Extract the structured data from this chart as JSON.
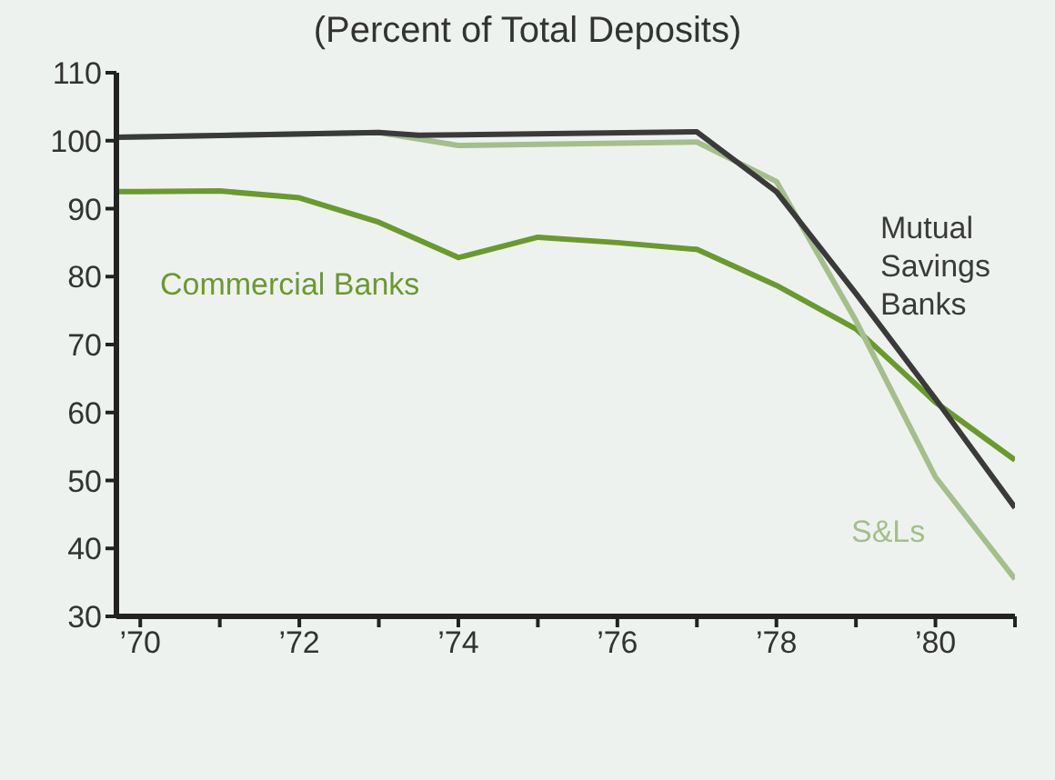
{
  "chart_data": {
    "type": "line",
    "title": "(Percent of Total Deposits)",
    "series": [
      {
        "name": "Commercial Banks",
        "color": "#6a9a2e",
        "x": [
          69.7,
          70,
          71,
          72,
          73,
          74,
          75,
          76,
          77,
          78,
          79,
          80,
          81
        ],
        "values": [
          92.5,
          92.5,
          92.6,
          91.6,
          88,
          82.8,
          85.8,
          85,
          84,
          78.7,
          72.3,
          61.5,
          53
        ]
      },
      {
        "name": "S&Ls",
        "color": "#a3bf8c",
        "x": [
          69.7,
          73,
          74,
          77,
          78,
          79,
          80,
          81
        ],
        "values": [
          100.5,
          101.2,
          99.3,
          99.8,
          94,
          73.5,
          50.5,
          35.5
        ]
      },
      {
        "name": "Mutual Savings Banks",
        "color": "#3a3a3a",
        "x": [
          69.7,
          73,
          73.5,
          77,
          78,
          79,
          80,
          81
        ],
        "values": [
          100.5,
          101.2,
          100.8,
          101.3,
          92.5,
          77.5,
          62,
          46
        ]
      }
    ],
    "xlim": [
      69.7,
      81
    ],
    "xticks": [
      {
        "value": 70,
        "label": "’70"
      },
      {
        "value": 71,
        "label": null
      },
      {
        "value": 72,
        "label": "’72"
      },
      {
        "value": 73,
        "label": null
      },
      {
        "value": 74,
        "label": "’74"
      },
      {
        "value": 75,
        "label": null
      },
      {
        "value": 76,
        "label": "’76"
      },
      {
        "value": 77,
        "label": null
      },
      {
        "value": 78,
        "label": "’78"
      },
      {
        "value": 79,
        "label": null
      },
      {
        "value": 80,
        "label": "’80"
      },
      {
        "value": 81,
        "label": null
      }
    ],
    "ylim": [
      30,
      110
    ],
    "yticks": [
      30,
      40,
      50,
      60,
      70,
      80,
      90,
      100,
      110
    ],
    "grid": false,
    "legend": false,
    "marker": "none",
    "line_style": "solid"
  }
}
